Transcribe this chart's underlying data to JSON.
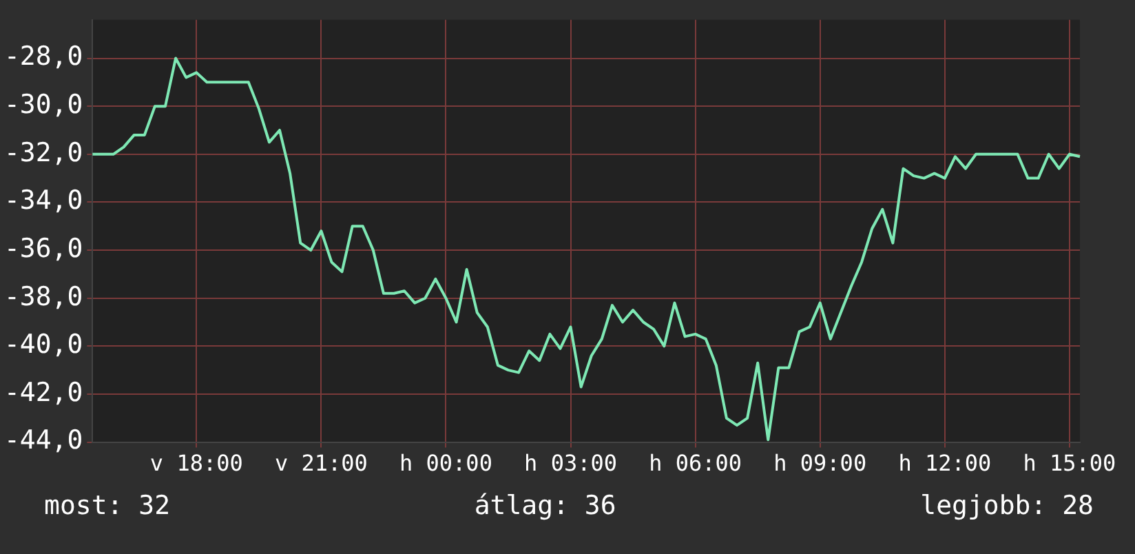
{
  "chart_data": {
    "type": "line",
    "ylim": [
      -44,
      -26.4
    ],
    "categories": [
      null,
      null,
      null,
      null,
      null,
      null,
      null,
      null,
      null,
      null,
      "v 18:00",
      null,
      null,
      null,
      null,
      null,
      null,
      null,
      null,
      null,
      null,
      null,
      "v 21:00",
      null,
      null,
      null,
      null,
      null,
      null,
      null,
      null,
      null,
      null,
      null,
      "h 00:00",
      null,
      null,
      null,
      null,
      null,
      null,
      null,
      null,
      null,
      null,
      null,
      "h 03:00",
      null,
      null,
      null,
      null,
      null,
      null,
      null,
      null,
      null,
      null,
      null,
      "h 06:00",
      null,
      null,
      null,
      null,
      null,
      null,
      null,
      null,
      null,
      null,
      null,
      "h 09:00",
      null,
      null,
      null,
      null,
      null,
      null,
      null,
      null,
      null,
      null,
      null,
      "h 12:00",
      null,
      null,
      null,
      null,
      null,
      null,
      null,
      null,
      null,
      null,
      null,
      "h 15:00",
      null
    ],
    "yticks": [
      {
        "value": -44,
        "label": "-44,0"
      },
      {
        "value": -42,
        "label": "-42,0"
      },
      {
        "value": -40,
        "label": "-40,0"
      },
      {
        "value": -38,
        "label": "-38,0"
      },
      {
        "value": -36,
        "label": "-36,0"
      },
      {
        "value": -34,
        "label": "-34,0"
      },
      {
        "value": -32,
        "label": "-32,0"
      },
      {
        "value": -30,
        "label": "-30,0"
      },
      {
        "value": -28,
        "label": "-28,0"
      }
    ],
    "grid": true,
    "legend": false,
    "marker": "none",
    "line_style": "solid",
    "annotations": [
      "most: 32",
      "átlag: 36",
      "legjobb: 28"
    ],
    "series": [
      {
        "color": "#7ee8b4",
        "values": [
          -32.0,
          -32.0,
          -32.0,
          -31.7,
          -31.2,
          -31.2,
          -30.0,
          -30.0,
          -28.0,
          -28.8,
          -28.6,
          -29.0,
          -29.0,
          -29.0,
          -29.0,
          -29.0,
          -30.1,
          -31.5,
          -31.0,
          -32.8,
          -35.7,
          -36.0,
          -35.2,
          -36.5,
          -36.9,
          -35.0,
          -35.0,
          -36.0,
          -37.8,
          -37.8,
          -37.7,
          -38.2,
          -38.0,
          -37.2,
          -38.0,
          -39.0,
          -36.8,
          -38.6,
          -39.2,
          -40.8,
          -41.0,
          -41.1,
          -40.2,
          -40.6,
          -39.5,
          -40.1,
          -39.2,
          -41.7,
          -40.4,
          -39.7,
          -38.3,
          -39.0,
          -38.5,
          -39.0,
          -39.3,
          -40.0,
          -38.2,
          -39.6,
          -39.5,
          -39.7,
          -40.8,
          -43.0,
          -43.3,
          -43.0,
          -40.7,
          -43.9,
          -40.9,
          -40.9,
          -39.4,
          -39.2,
          -38.2,
          -39.7,
          -38.6,
          -37.5,
          -36.5,
          -35.1,
          -34.3,
          -35.7,
          -32.6,
          -32.9,
          -33.0,
          -32.8,
          -33.0,
          -32.1,
          -32.6,
          -32.0,
          -32.0,
          -32.0,
          -32.0,
          -32.0,
          -33.0,
          -33.0,
          -32.0,
          -32.6,
          -32.0,
          -32.1
        ]
      }
    ]
  }
}
